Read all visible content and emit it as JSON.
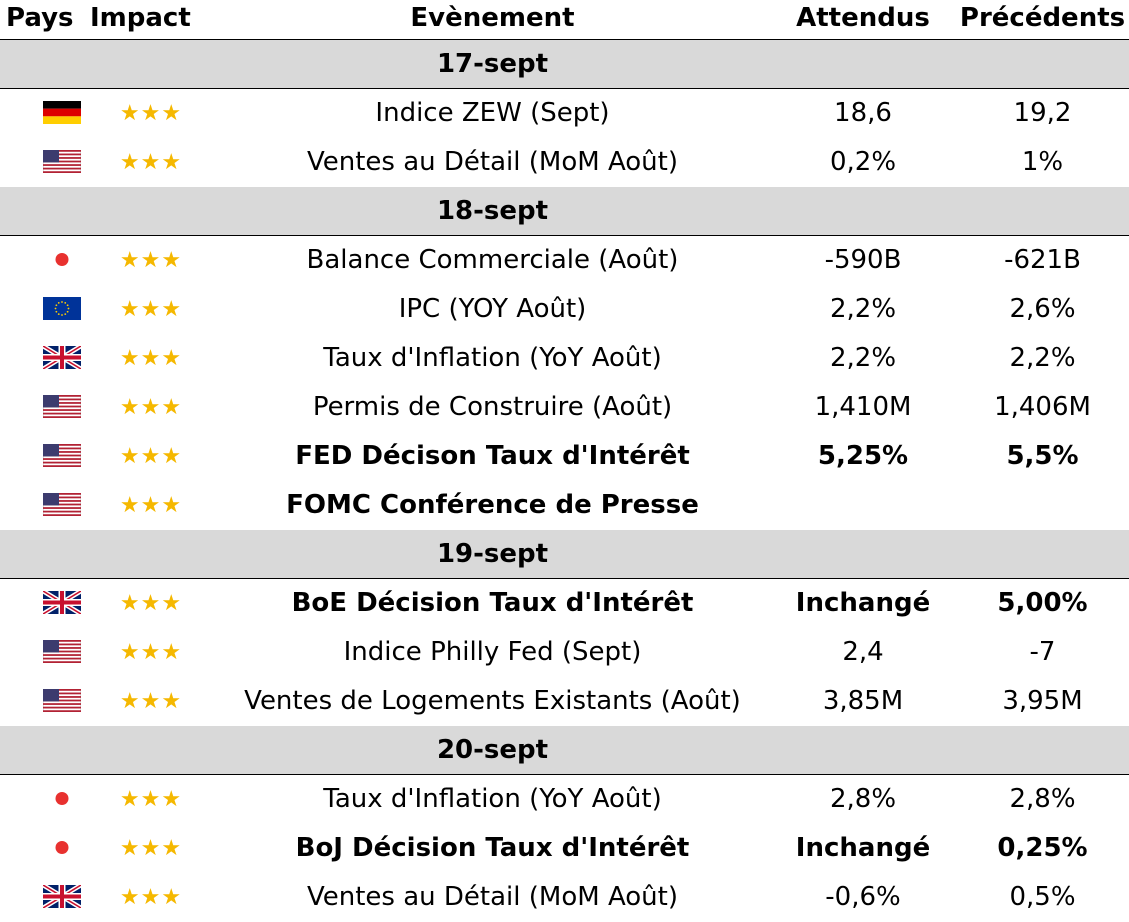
{
  "header": {
    "pays": "Pays",
    "impact": "Impact",
    "event": "Evènement",
    "expected": "Attendus",
    "previous": "Précédents"
  },
  "days": [
    {
      "date": "17-sept",
      "rows": [
        {
          "flag": "germany-flag-icon",
          "stars": "★★★",
          "event": "Indice ZEW (Sept)",
          "expected": "18,6",
          "previous": "19,2",
          "bold": false
        },
        {
          "flag": "usa-flag-icon",
          "stars": "★★★",
          "event": "Ventes au Détail (MoM Août)",
          "expected": "0,2%",
          "previous": "1%",
          "bold": false
        }
      ]
    },
    {
      "date": "18-sept",
      "rows": [
        {
          "flag": "japan-flag-icon",
          "stars": "★★★",
          "event": "Balance Commerciale (Août)",
          "expected": "-590B",
          "previous": "-621B",
          "bold": false
        },
        {
          "flag": "eu-flag-icon",
          "stars": "★★★",
          "event": "IPC (YOY Août)",
          "expected": "2,2%",
          "previous": "2,6%",
          "bold": false
        },
        {
          "flag": "uk-flag-icon",
          "stars": "★★★",
          "event": "Taux d'Inflation (YoY Août)",
          "expected": "2,2%",
          "previous": "2,2%",
          "bold": false
        },
        {
          "flag": "usa-flag-icon",
          "stars": "★★★",
          "event": "Permis de Construire (Août)",
          "expected": "1,410M",
          "previous": "1,406M",
          "bold": false
        },
        {
          "flag": "usa-flag-icon",
          "stars": "★★★",
          "event": "FED Décison Taux d'Intérêt",
          "expected": "5,25%",
          "previous": "5,5%",
          "bold": true
        },
        {
          "flag": "usa-flag-icon",
          "stars": "★★★",
          "event": "FOMC Conférence de Presse",
          "expected": "",
          "previous": "",
          "bold": true
        }
      ]
    },
    {
      "date": "19-sept",
      "rows": [
        {
          "flag": "uk-flag-icon",
          "stars": "★★★",
          "event": "BoE Décision Taux d'Intérêt",
          "expected": "Inchangé",
          "previous": "5,00%",
          "bold": true
        },
        {
          "flag": "usa-flag-icon",
          "stars": "★★★",
          "event": "Indice Philly Fed (Sept)",
          "expected": "2,4",
          "previous": "-7",
          "bold": false
        },
        {
          "flag": "usa-flag-icon",
          "stars": "★★★",
          "event": "Ventes de Logements Existants (Août)",
          "expected": "3,85M",
          "previous": "3,95M",
          "bold": false
        }
      ]
    },
    {
      "date": "20-sept",
      "rows": [
        {
          "flag": "japan-flag-icon",
          "stars": "★★★",
          "event": "Taux d'Inflation (YoY Août)",
          "expected": "2,8%",
          "previous": "2,8%",
          "bold": false
        },
        {
          "flag": "japan-flag-icon",
          "stars": "★★★",
          "event": "BoJ Décision Taux d'Intérêt",
          "expected": "Inchangé",
          "previous": "0,25%",
          "bold": true
        },
        {
          "flag": "uk-flag-icon",
          "stars": "★★★",
          "event": "Ventes au Détail (MoM Août)",
          "expected": "-0,6%",
          "previous": "0,5%",
          "bold": false
        }
      ]
    }
  ],
  "colors": {
    "date_band": "#d9d9d9",
    "stars": "#f5b800",
    "japan_dot": "#e8312f"
  }
}
